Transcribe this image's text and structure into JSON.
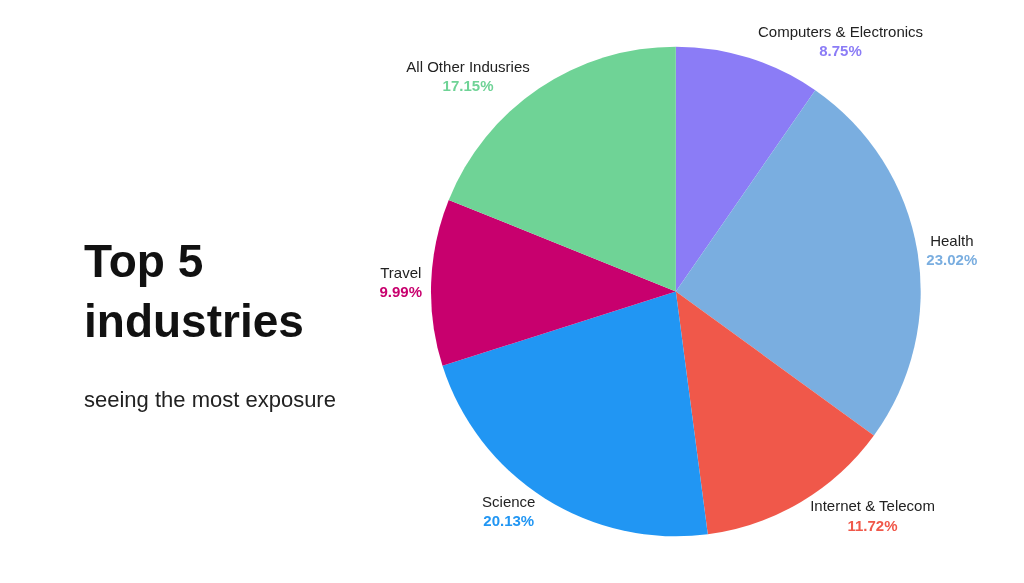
{
  "chart_data": {
    "type": "pie",
    "title": "Top 5\nindustries",
    "subtitle": "seeing the most exposure",
    "categories": [
      "Computers & Electronics",
      "Health",
      "Internet & Telecom",
      "Science",
      "Travel",
      "All Other Indusries"
    ],
    "values": [
      8.75,
      23.02,
      11.72,
      20.13,
      9.99,
      17.15
    ],
    "value_labels": [
      "8.75%",
      "23.02%",
      "11.72%",
      "20.13%",
      "9.99%",
      "17.15%"
    ],
    "colors": [
      "#8b7cf6",
      "#7aaee0",
      "#f0584a",
      "#2196f3",
      "#c8006e",
      "#6fd396"
    ],
    "legend": false
  }
}
